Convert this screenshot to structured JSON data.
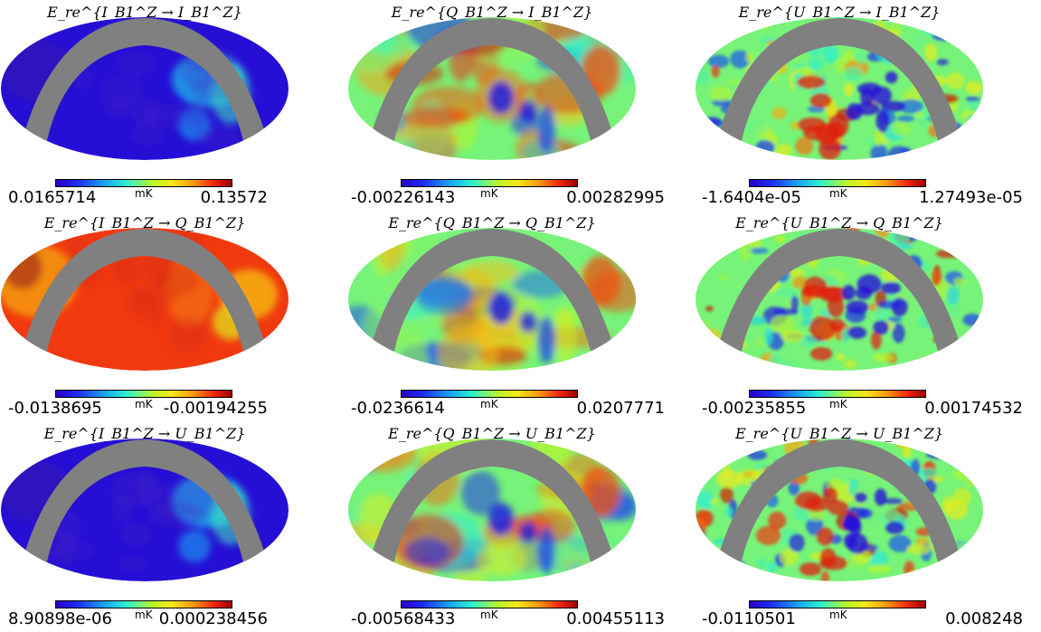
{
  "chart_data": [
    {
      "type": "heatmap",
      "projection": "mollweide",
      "title": "E_re^{I_B1^Z → I_B1^Z}",
      "colorbar_unit": "mK",
      "vmin": "0.0165714",
      "vmax": "0.13572",
      "palette": "low"
    },
    {
      "type": "heatmap",
      "projection": "mollweide",
      "title": "E_re^{Q_B1^Z → I_B1^Z}",
      "colorbar_unit": "mK",
      "vmin": "-0.00226143",
      "vmax": "0.00282995",
      "palette": "mid"
    },
    {
      "type": "heatmap",
      "projection": "mollweide",
      "title": "E_re^{U_B1^Z → I_B1^Z}",
      "colorbar_unit": "mK",
      "vmin": "-1.6404e-05",
      "vmax": "1.27493e-05",
      "palette": "noisy"
    },
    {
      "type": "heatmap",
      "projection": "mollweide",
      "title": "E_re^{I_B1^Z → Q_B1^Z}",
      "colorbar_unit": "mK",
      "vmin": "-0.0138695",
      "vmax": "-0.00194255",
      "palette": "high"
    },
    {
      "type": "heatmap",
      "projection": "mollweide",
      "title": "E_re^{Q_B1^Z → Q_B1^Z}",
      "colorbar_unit": "mK",
      "vmin": "-0.0236614",
      "vmax": "0.0207771",
      "palette": "mid"
    },
    {
      "type": "heatmap",
      "projection": "mollweide",
      "title": "E_re^{U_B1^Z → Q_B1^Z}",
      "colorbar_unit": "mK",
      "vmin": "-0.00235855",
      "vmax": "0.00174532",
      "palette": "noisy"
    },
    {
      "type": "heatmap",
      "projection": "mollweide",
      "title": "E_re^{I_B1^Z → U_B1^Z}",
      "colorbar_unit": "mK",
      "vmin": "8.90898e-06",
      "vmax": "0.000238456",
      "palette": "low"
    },
    {
      "type": "heatmap",
      "projection": "mollweide",
      "title": "E_re^{Q_B1^Z → U_B1^Z}",
      "colorbar_unit": "mK",
      "vmin": "-0.00568433",
      "vmax": "0.00455113",
      "palette": "mid"
    },
    {
      "type": "heatmap",
      "projection": "mollweide",
      "title": "E_re^{U_B1^Z → U_B1^Z}",
      "colorbar_unit": "mK",
      "vmin": "-0.0110501",
      "vmax": "0.008248",
      "palette": "noisy"
    }
  ],
  "colors": {
    "mask": "#808080",
    "background": "#ffffff"
  }
}
